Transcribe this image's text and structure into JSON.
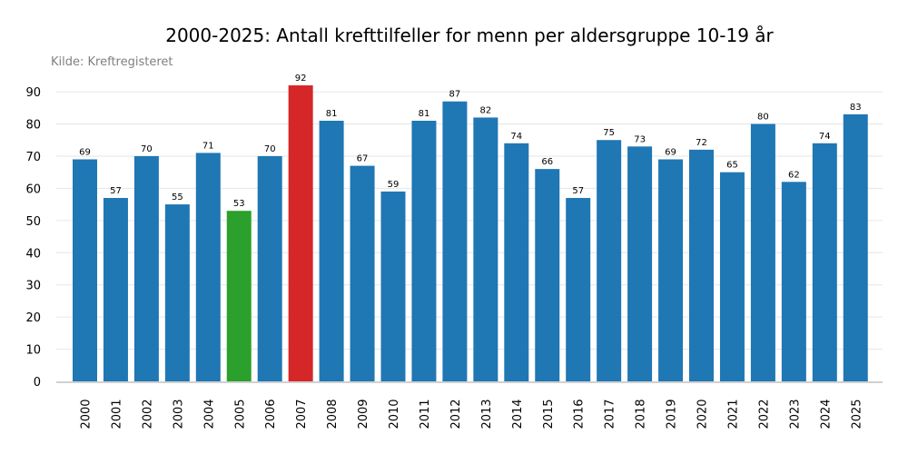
{
  "chart_data": {
    "type": "bar",
    "title": "2000-2025: Antall krefttilfeller for menn per aldersgruppe 10-19 år",
    "source": "Kilde: Kreftregisteret",
    "xlabel": "",
    "ylabel": "",
    "ylim": [
      0,
      92
    ],
    "yticks": [
      0,
      10,
      20,
      30,
      40,
      50,
      60,
      70,
      80,
      90
    ],
    "grid": true,
    "categories": [
      "2000",
      "2001",
      "2002",
      "2003",
      "2004",
      "2005",
      "2006",
      "2007",
      "2008",
      "2009",
      "2010",
      "2011",
      "2012",
      "2013",
      "2014",
      "2015",
      "2016",
      "2017",
      "2018",
      "2019",
      "2020",
      "2021",
      "2022",
      "2023",
      "2024",
      "2025"
    ],
    "values": [
      69,
      57,
      70,
      55,
      71,
      53,
      70,
      92,
      81,
      67,
      59,
      81,
      87,
      82,
      74,
      66,
      57,
      75,
      73,
      69,
      72,
      65,
      80,
      62,
      74,
      83
    ],
    "colors": {
      "default": "#1f77b4",
      "highlight_max": "#d62728",
      "highlight_min": "#2ca02c"
    },
    "highlight": {
      "max_category": "2007",
      "min_category": "2005"
    }
  }
}
